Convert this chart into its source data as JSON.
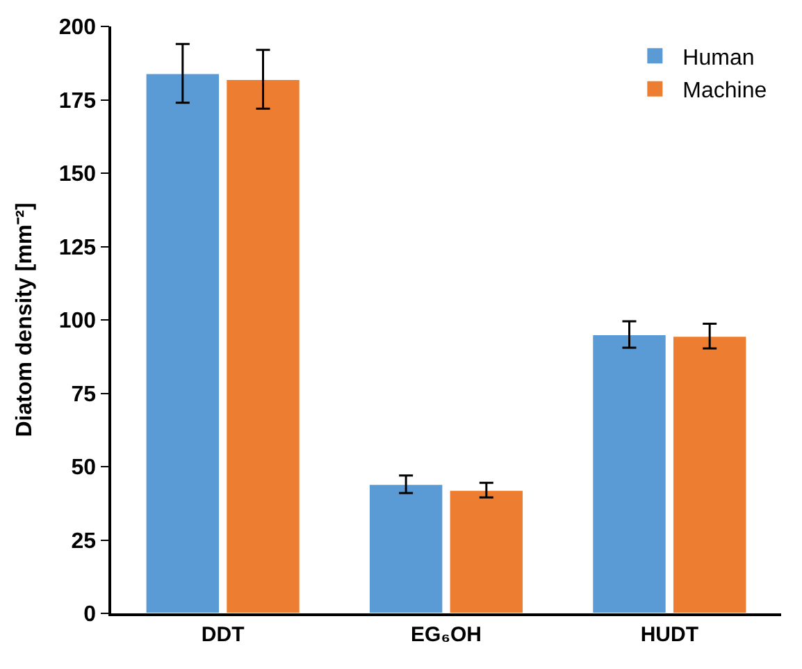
{
  "chart_data": {
    "type": "bar",
    "ylabel": "Diatom density [mm⁻²]",
    "categories": [
      "DDT",
      "EG₆OH",
      "HUDT"
    ],
    "series": [
      {
        "name": "Human",
        "color": "#5b9bd5",
        "values": [
          184,
          44,
          95
        ],
        "errors": [
          10,
          3,
          4.5
        ]
      },
      {
        "name": "Machine",
        "color": "#ed7d31",
        "values": [
          182,
          42,
          94.5
        ],
        "errors": [
          10,
          2.5,
          4.2
        ]
      }
    ],
    "ylim": [
      0,
      200
    ],
    "yticks": [
      0,
      25,
      50,
      75,
      100,
      125,
      150,
      175,
      200
    ],
    "legend": "top right"
  }
}
